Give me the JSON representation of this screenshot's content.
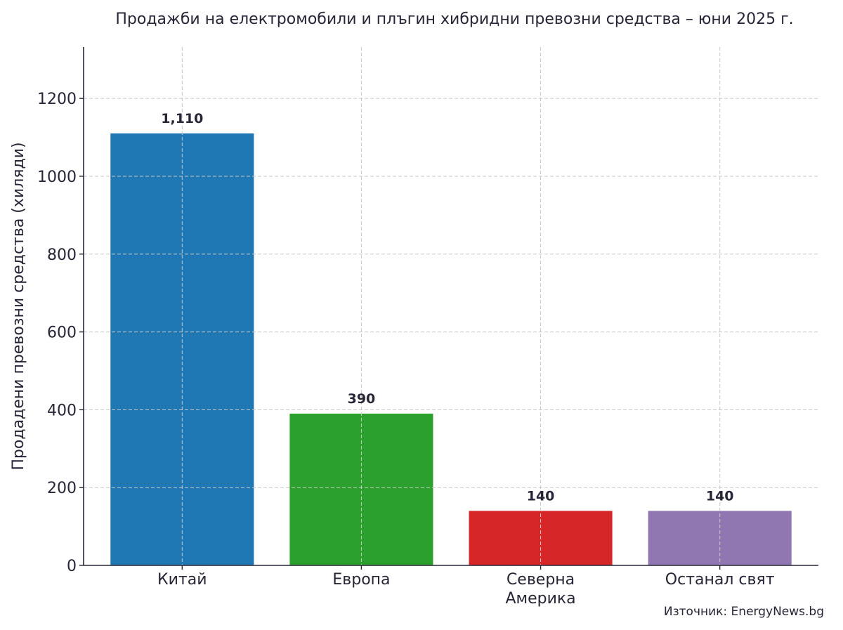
{
  "chart_data": {
    "type": "bar",
    "title": "Продажби на електромобили и плъгин хибридни превозни средства – юни 2025 г.",
    "xlabel": "",
    "ylabel": "Продадени превозни средства (хиляди)",
    "categories": [
      [
        "Китай"
      ],
      [
        "Европа"
      ],
      [
        "Северна",
        "Америка"
      ],
      [
        "Останал свят"
      ]
    ],
    "values": [
      1110,
      390,
      140,
      140
    ],
    "data_labels": [
      "1,110",
      "390",
      "140",
      "140"
    ],
    "colors": [
      "#1f77b4",
      "#2ca02c",
      "#d62728",
      "#9077b1"
    ],
    "ylim": [
      0,
      1332
    ],
    "yticks": [
      0,
      200,
      400,
      600,
      800,
      1000,
      1200
    ],
    "grid": true,
    "source": "Източник: EnergyNews.bg"
  }
}
